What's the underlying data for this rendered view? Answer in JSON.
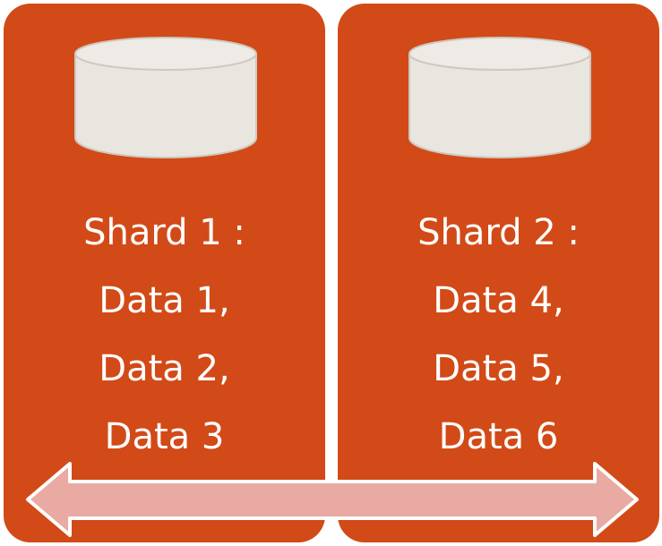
{
  "shards": [
    {
      "title": "Shard 1 :",
      "items": [
        "Data 1,",
        "Data 2,",
        "Data 3"
      ]
    },
    {
      "title": "Shard 2 :",
      "items": [
        "Data 4,",
        "Data 5,",
        "Data 6"
      ]
    }
  ],
  "colors": {
    "panel": "#d24a17",
    "database_fill": "#e9e5df",
    "database_stroke": "#cfc8c0",
    "arrow_fill": "#e8aaa3",
    "arrow_stroke": "#ffffff",
    "text": "#ffffff"
  },
  "icons": {
    "database": "database-icon",
    "arrow": "double-headed-arrow-icon"
  }
}
